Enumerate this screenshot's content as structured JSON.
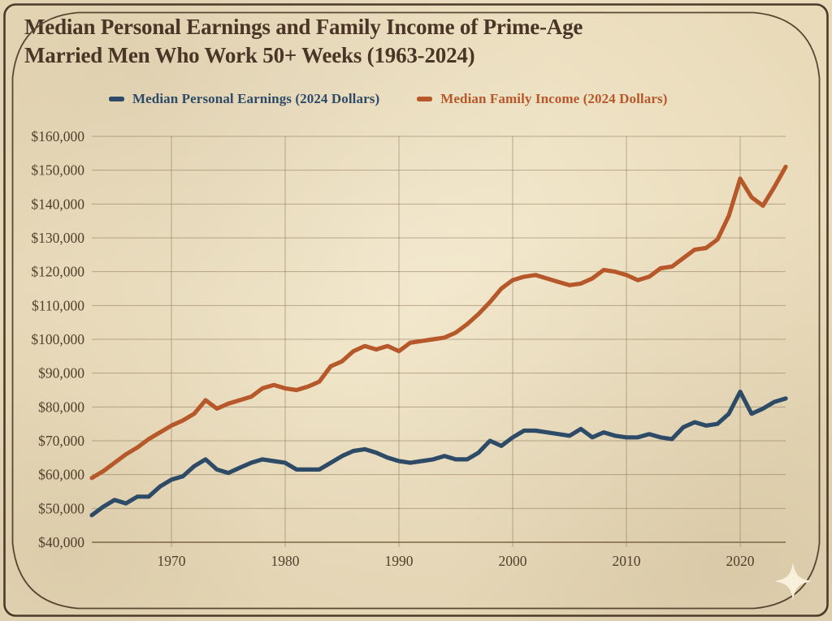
{
  "header": {
    "title_lines": [
      "Median Personal Earnings and Family Income of Prime-Age",
      "Married Men Who Work 50+ Weeks (1963-2024)"
    ]
  },
  "chart_data": {
    "type": "line",
    "title": "Median Personal Earnings and Family Income of Prime-Age Married Men Who Work 50+ Weeks (1963-2024)",
    "xlabel": "",
    "ylabel": "",
    "grid": true,
    "legend_position": "top",
    "x_range": [
      1963,
      2024
    ],
    "ylim": [
      40000,
      160000
    ],
    "x_ticks": [
      1970,
      1980,
      1990,
      2000,
      2010,
      2020
    ],
    "y_ticks": [
      40000,
      50000,
      60000,
      70000,
      80000,
      90000,
      100000,
      110000,
      120000,
      130000,
      140000,
      150000,
      160000
    ],
    "years": [
      1963,
      1964,
      1965,
      1966,
      1967,
      1968,
      1969,
      1970,
      1971,
      1972,
      1973,
      1974,
      1975,
      1976,
      1977,
      1978,
      1979,
      1980,
      1981,
      1982,
      1983,
      1984,
      1985,
      1986,
      1987,
      1988,
      1989,
      1990,
      1991,
      1992,
      1993,
      1994,
      1995,
      1996,
      1997,
      1998,
      1999,
      2000,
      2001,
      2002,
      2003,
      2004,
      2005,
      2006,
      2007,
      2008,
      2009,
      2010,
      2011,
      2012,
      2013,
      2014,
      2015,
      2016,
      2017,
      2018,
      2019,
      2020,
      2021,
      2022,
      2023,
      2024
    ],
    "series": [
      {
        "name": "Median Personal Earnings (2024 Dollars)",
        "color": "#2d4a67",
        "values": [
          48000,
          50500,
          52500,
          51500,
          53500,
          53500,
          56500,
          58500,
          59500,
          62500,
          64500,
          61500,
          60500,
          62000,
          63500,
          64500,
          64000,
          63500,
          61500,
          61500,
          61500,
          63500,
          65500,
          67000,
          67500,
          66500,
          65000,
          64000,
          63500,
          64000,
          64500,
          65500,
          64500,
          64500,
          66500,
          70000,
          68500,
          71000,
          73000,
          73000,
          72500,
          72000,
          71500,
          73500,
          71000,
          72500,
          71500,
          71000,
          71000,
          72000,
          71000,
          70500,
          74000,
          75500,
          74500,
          75000,
          78000,
          84500,
          78000,
          79500,
          81500,
          82500
        ]
      },
      {
        "name": "Median Family Income (2024 Dollars)",
        "color": "#b65829",
        "values": [
          59000,
          61000,
          63500,
          66000,
          68000,
          70500,
          72500,
          74500,
          76000,
          78000,
          82000,
          79500,
          81000,
          82000,
          83000,
          85500,
          86500,
          85500,
          85000,
          86000,
          87500,
          92000,
          93500,
          96500,
          98000,
          97000,
          98000,
          96500,
          99000,
          99500,
          100000,
          100500,
          102000,
          104500,
          107500,
          111000,
          115000,
          117500,
          118500,
          119000,
          118000,
          117000,
          116000,
          116500,
          118000,
          120500,
          120000,
          119000,
          117500,
          118500,
          121000,
          121500,
          124000,
          126500,
          127000,
          129500,
          136500,
          147500,
          142000,
          139500,
          145000,
          151000
        ]
      }
    ]
  },
  "style": {
    "background": "#e9dbba",
    "title_color": "#4a3526",
    "axis_text_color": "#52402c",
    "grid_color": "#8c7656",
    "border_color": "#54422e",
    "sparkle_color": "#f8f0da"
  }
}
